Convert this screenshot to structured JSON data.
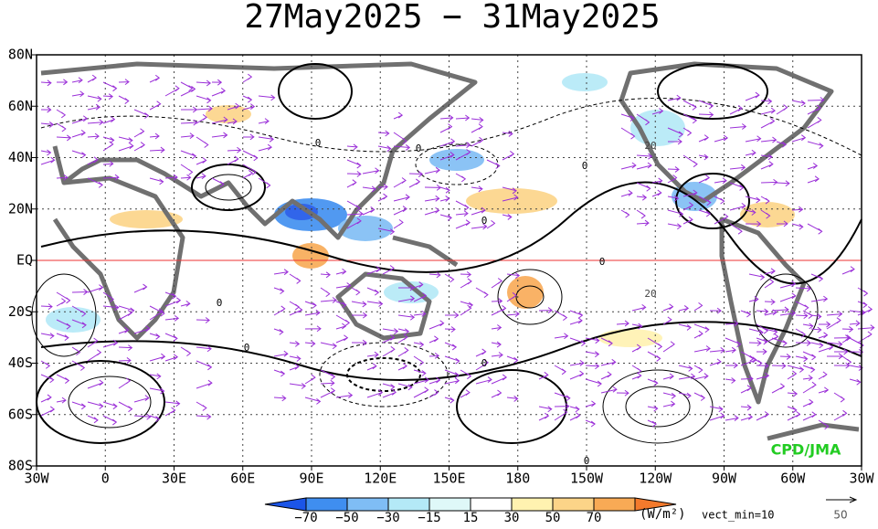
{
  "header": {
    "title": "27May2025 − 31May2025"
  },
  "map": {
    "lat_labels": [
      "80N",
      "60N",
      "40N",
      "20N",
      "EQ",
      "20S",
      "40S",
      "60S",
      "80S"
    ],
    "lon_labels": [
      "30W",
      "0",
      "30E",
      "60E",
      "90E",
      "120E",
      "150E",
      "180",
      "150W",
      "120W",
      "90W",
      "60W",
      "30W"
    ],
    "contour_labels": [
      "0",
      "0",
      "0",
      "0",
      "0",
      "0",
      "0",
      "0",
      "20",
      "20",
      "0"
    ],
    "credit": "CPD/JMA"
  },
  "colorbar": {
    "colors": [
      "#1b55e8",
      "#3f8ef0",
      "#7fbdf5",
      "#b4e9f7",
      "#dff8f8",
      "#ffffff",
      "#fff2b0",
      "#fcd488",
      "#f8aa55",
      "#f47a2c"
    ],
    "labels": [
      "−70",
      "−50",
      "−30",
      "−15",
      "15",
      "30",
      "50",
      "70"
    ],
    "unit": "(W/m²)",
    "vector_note": "vect_min=10",
    "reference_vector": "50"
  }
}
